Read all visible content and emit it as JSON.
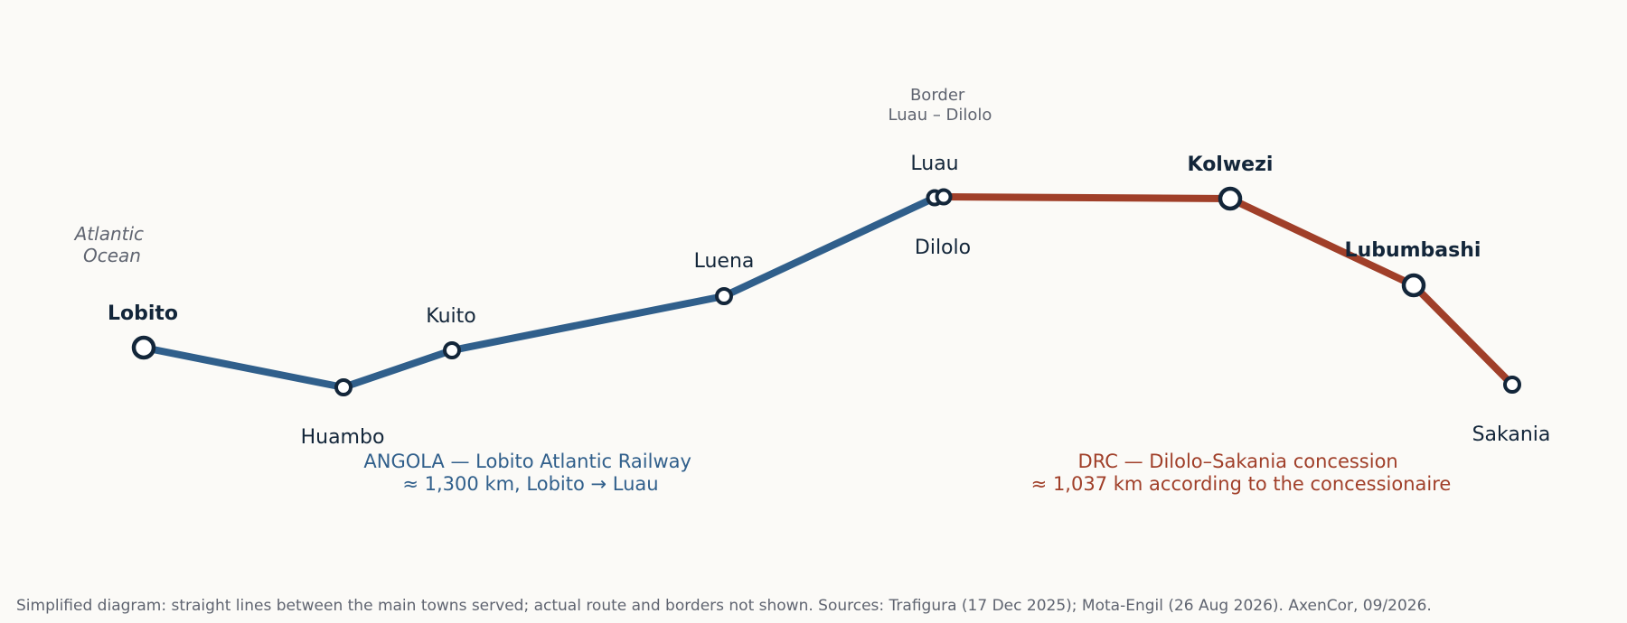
{
  "ocean_label": [
    "Atlantic",
    "Ocean"
  ],
  "border_note": [
    "Border",
    "Luau – Dilolo"
  ],
  "colors": {
    "angola_line": "#305f8b",
    "drc_line": "#a03f29",
    "station_stroke": "#13263a",
    "station_fill": "#ffffff",
    "label": "#13263a",
    "muted": "#5f6470",
    "background": "#fbfaf7"
  },
  "stations": [
    {
      "id": "lobito",
      "name": "Lobito",
      "major": true
    },
    {
      "id": "huambo",
      "name": "Huambo",
      "major": false
    },
    {
      "id": "kuito",
      "name": "Kuito",
      "major": false
    },
    {
      "id": "luena",
      "name": "Luena",
      "major": false
    },
    {
      "id": "luau",
      "name": "Luau",
      "major": false
    },
    {
      "id": "dilolo",
      "name": "Dilolo",
      "major": false
    },
    {
      "id": "kolwezi",
      "name": "Kolwezi",
      "major": true
    },
    {
      "id": "lubumbashi",
      "name": "Lubumbashi",
      "major": true
    },
    {
      "id": "sakania",
      "name": "Sakania",
      "major": false
    }
  ],
  "segments": {
    "angola": {
      "caption": [
        "ANGOLA — Lobito Atlantic Railway",
        "≈ 1,300 km, Lobito → Luau"
      ],
      "stations": [
        "lobito",
        "huambo",
        "kuito",
        "luena",
        "luau"
      ]
    },
    "drc": {
      "caption": [
        "DRC — Dilolo–Sakania concession",
        "≈ 1,037 km according to the concessionaire"
      ],
      "stations": [
        "dilolo",
        "kolwezi",
        "lubumbashi",
        "sakania"
      ]
    }
  },
  "footnote": "Simplified diagram: straight lines between the main towns served; actual route and borders not shown. Sources: Trafigura (17 Dec 2025); Mota-Engil (26 Aug 2026). AxenCor, 09/2026."
}
